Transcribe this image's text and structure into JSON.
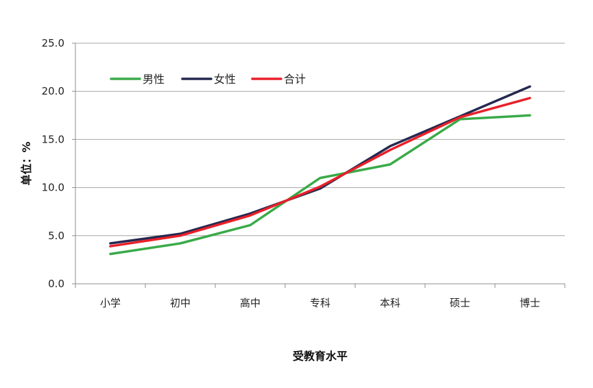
{
  "chart_data": {
    "type": "line",
    "title": "",
    "xlabel": "受教育水平",
    "ylabel": "单位：%",
    "categories": [
      "小学",
      "初中",
      "高中",
      "专科",
      "本科",
      "硕士",
      "博士"
    ],
    "ylim": [
      0,
      25
    ],
    "yticks": [
      "0.0",
      "5.0",
      "10.0",
      "15.0",
      "20.0",
      "25.0"
    ],
    "grid": true,
    "legend_position": "top-left",
    "series": [
      {
        "name": "男性",
        "color": "#3aaa48",
        "values": [
          3.1,
          4.2,
          6.1,
          11.0,
          12.4,
          17.1,
          17.5
        ]
      },
      {
        "name": "女性",
        "color": "#252850",
        "values": [
          4.2,
          5.2,
          7.3,
          9.9,
          14.3,
          17.4,
          20.5
        ]
      },
      {
        "name": "合计",
        "color": "#e8202a",
        "values": [
          3.9,
          5.0,
          7.1,
          10.1,
          13.9,
          17.3,
          19.3
        ]
      }
    ]
  }
}
